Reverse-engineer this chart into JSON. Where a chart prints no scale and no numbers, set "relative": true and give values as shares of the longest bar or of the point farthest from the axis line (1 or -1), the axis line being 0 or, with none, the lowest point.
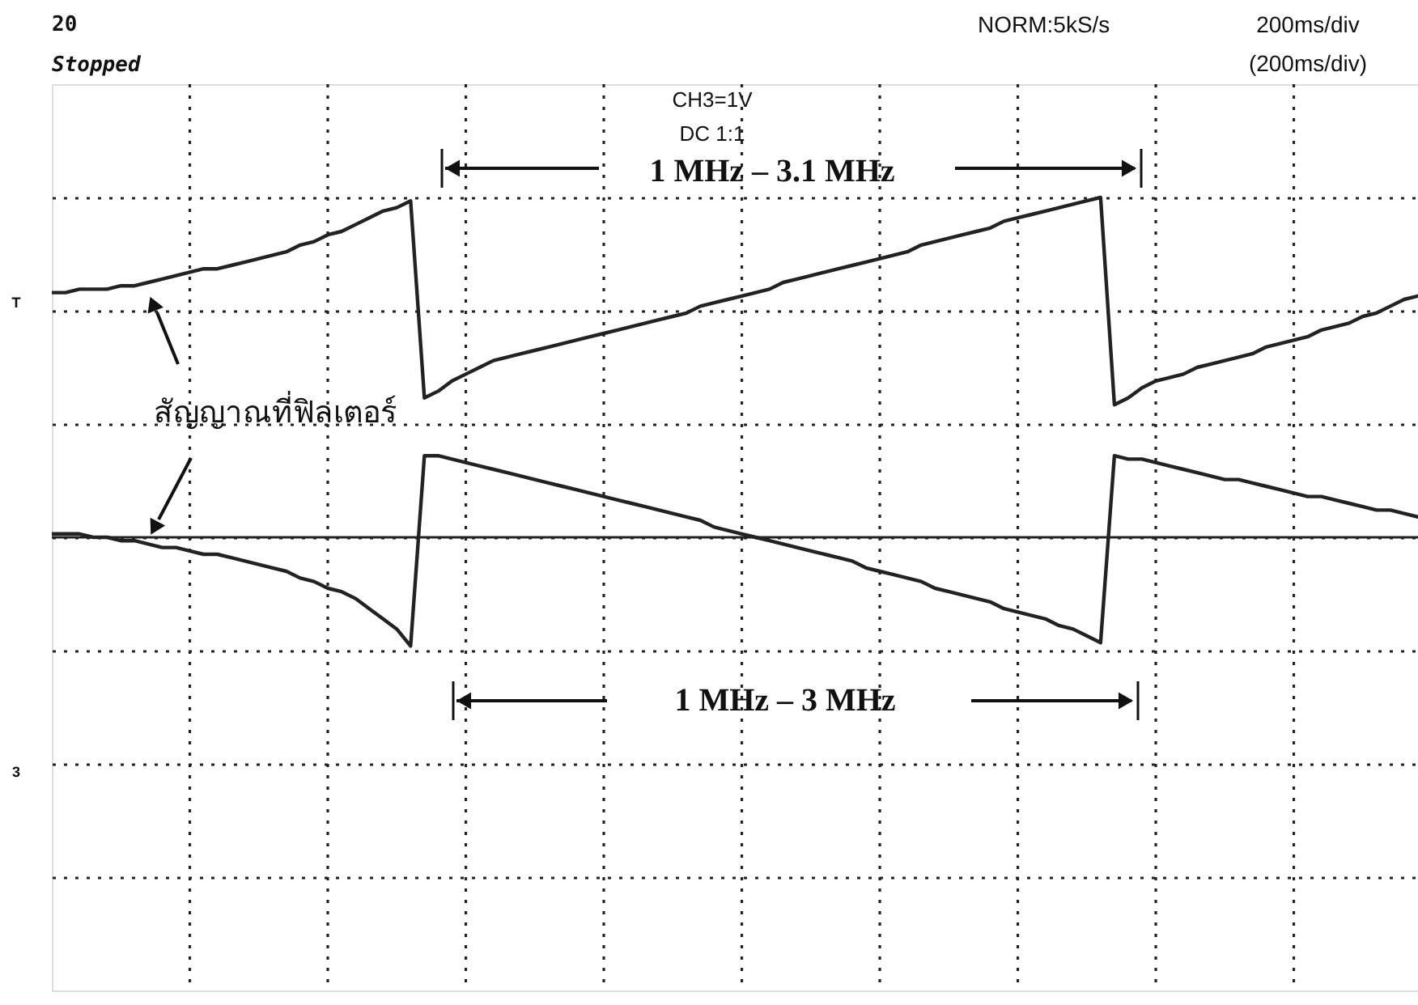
{
  "chart_data": {
    "type": "line",
    "relative": true,
    "legend": false,
    "grid": true,
    "marker": "none",
    "line_style": "solid",
    "categories": [
      null,
      null,
      null,
      null,
      null,
      null,
      null,
      null,
      null,
      null,
      null,
      null,
      null,
      null,
      null,
      null,
      null,
      null,
      null,
      null,
      null,
      null,
      null,
      null,
      null,
      null,
      null,
      null,
      null,
      null,
      null,
      null,
      null,
      null,
      null,
      null,
      null,
      null,
      null,
      null,
      null,
      null,
      null,
      null,
      null,
      null,
      null,
      null,
      null,
      null,
      null,
      null,
      null,
      null,
      null,
      null,
      null,
      null,
      null,
      null,
      null,
      null,
      null,
      null,
      null,
      null,
      null,
      null,
      null,
      null,
      null,
      null,
      null,
      null,
      null,
      null,
      null,
      null,
      null,
      null,
      null,
      null,
      null,
      null,
      null,
      null,
      null,
      null,
      null,
      null,
      null,
      null,
      null,
      null,
      null,
      null,
      null,
      null,
      null,
      null
    ],
    "series": [
      {
        "color": "#222222",
        "values": [
          0.72,
          0.72,
          0.73,
          0.73,
          0.73,
          0.74,
          0.74,
          0.75,
          0.76,
          0.77,
          0.78,
          0.79,
          0.79,
          0.8,
          0.81,
          0.82,
          0.83,
          0.84,
          0.86,
          0.87,
          0.89,
          0.9,
          0.92,
          0.94,
          0.96,
          0.97,
          0.99,
          0.41,
          0.43,
          0.46,
          0.48,
          0.5,
          0.52,
          0.53,
          0.54,
          0.55,
          0.56,
          0.57,
          0.58,
          0.59,
          0.6,
          0.61,
          0.62,
          0.63,
          0.64,
          0.65,
          0.66,
          0.68,
          0.69,
          0.7,
          0.71,
          0.72,
          0.73,
          0.75,
          0.76,
          0.77,
          0.78,
          0.79,
          0.8,
          0.81,
          0.82,
          0.83,
          0.84,
          0.86,
          0.87,
          0.88,
          0.89,
          0.9,
          0.91,
          0.93,
          0.94,
          0.95,
          0.96,
          0.97,
          0.98,
          0.99,
          1.0,
          0.39,
          0.41,
          0.44,
          0.46,
          0.47,
          0.48,
          0.5,
          0.51,
          0.52,
          0.53,
          0.54,
          0.56,
          0.57,
          0.58,
          0.59,
          0.61,
          0.62,
          0.63,
          0.65,
          0.66,
          0.68,
          0.7,
          0.71
        ]
      },
      {
        "color": "#222222",
        "values": [
          0.01,
          0.01,
          0.01,
          0,
          0,
          -0.01,
          -0.01,
          -0.02,
          -0.03,
          -0.03,
          -0.04,
          -0.05,
          -0.05,
          -0.06,
          -0.07,
          -0.08,
          -0.09,
          -0.1,
          -0.12,
          -0.13,
          -0.15,
          -0.16,
          -0.18,
          -0.21,
          -0.24,
          -0.27,
          -0.32,
          0.24,
          0.24,
          0.23,
          0.22,
          0.21,
          0.2,
          0.19,
          0.18,
          0.17,
          0.16,
          0.15,
          0.14,
          0.13,
          0.12,
          0.11,
          0.1,
          0.09,
          0.08,
          0.07,
          0.06,
          0.05,
          0.03,
          0.02,
          0.01,
          0,
          -0.01,
          -0.02,
          -0.03,
          -0.04,
          -0.05,
          -0.06,
          -0.07,
          -0.09,
          -0.1,
          -0.11,
          -0.12,
          -0.13,
          -0.15,
          -0.16,
          -0.17,
          -0.18,
          -0.19,
          -0.21,
          -0.22,
          -0.23,
          -0.24,
          -0.26,
          -0.27,
          -0.29,
          -0.31,
          0.24,
          0.23,
          0.23,
          0.22,
          0.21,
          0.2,
          0.19,
          0.18,
          0.17,
          0.17,
          0.16,
          0.15,
          0.14,
          0.13,
          0.12,
          0.12,
          0.11,
          0.1,
          0.09,
          0.08,
          0.08,
          0.07,
          0.06
        ]
      }
    ],
    "annotations": [
      "20",
      "Stopped",
      "NORM:5kS/s",
      "200ms/div",
      "(200ms/div)",
      "CH3=1V",
      "DC 1:1",
      "1 MHz – 3.1 MHz",
      "1 MHz – 3 MHz",
      "สัญญาณที่ฟิลเตอร์",
      "T",
      "3"
    ]
  }
}
